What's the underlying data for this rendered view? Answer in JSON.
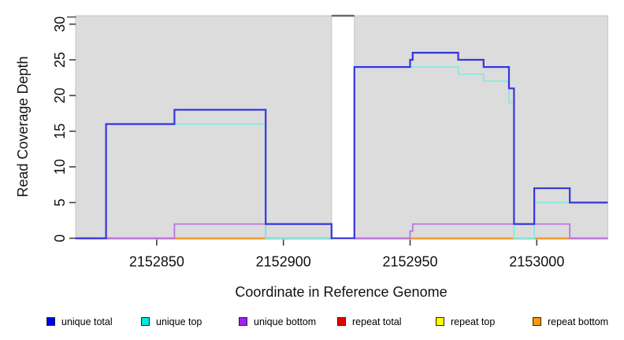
{
  "figure": {
    "background": "#ffffff",
    "panel_background": "#dcdcdc",
    "panel_border": "#c4c4c4",
    "tick_color": "#404040",
    "gap_marker_color": "#6a6a6a",
    "y_axis_gap_tick_color": "#555555"
  },
  "legend": {
    "items": [
      {
        "label": "unique total",
        "color": "#0000ee"
      },
      {
        "label": "unique top",
        "color": "#00e5e5"
      },
      {
        "label": "unique bottom",
        "color": "#a020f0"
      },
      {
        "label": "repeat total",
        "color": "#e60000"
      },
      {
        "label": "repeat top",
        "color": "#ffff00"
      },
      {
        "label": "repeat bottom",
        "color": "#ff9900"
      }
    ]
  },
  "chart_data": {
    "type": "step-line",
    "title": "",
    "xlabel": "Coordinate in Reference Genome",
    "ylabel": "Read Coverage Depth",
    "xlim": [
      2152818,
      2153028
    ],
    "ylim": [
      0,
      31
    ],
    "x_ticks": [
      2152850,
      2152900,
      2152950,
      2153000
    ],
    "y_ticks": [
      0,
      5,
      10,
      15,
      20,
      25,
      30
    ],
    "y_axis_gap_tick": 31,
    "grid": false,
    "legend_position": "bottom",
    "regions": [
      {
        "x0": 2152818,
        "x1": 2152919
      },
      {
        "x0": 2152928,
        "x1": 2153028
      }
    ],
    "gap_markers": [
      {
        "x0": 2152919,
        "x1": 2152928,
        "y": 31
      }
    ],
    "series": [
      {
        "name": "unique total",
        "stroke": "#3535de",
        "points": [
          [
            2152818,
            0
          ],
          [
            2152830,
            0
          ],
          [
            2152830,
            16
          ],
          [
            2152857,
            16
          ],
          [
            2152857,
            18
          ],
          [
            2152893,
            18
          ],
          [
            2152893,
            2
          ],
          [
            2152919,
            2
          ],
          [
            2152919,
            0
          ],
          [
            2152928,
            0
          ],
          [
            2152928,
            24
          ],
          [
            2152950,
            24
          ],
          [
            2152950,
            25
          ],
          [
            2152951,
            25
          ],
          [
            2152951,
            26
          ],
          [
            2152969,
            26
          ],
          [
            2152969,
            25
          ],
          [
            2152979,
            25
          ],
          [
            2152979,
            24
          ],
          [
            2152989,
            24
          ],
          [
            2152989,
            21
          ],
          [
            2152991,
            21
          ],
          [
            2152991,
            2
          ],
          [
            2152999,
            2
          ],
          [
            2152999,
            7
          ],
          [
            2153013,
            7
          ],
          [
            2153013,
            5
          ],
          [
            2153028,
            5
          ]
        ]
      },
      {
        "name": "unique top",
        "stroke": "#86e9e2",
        "points": [
          [
            2152818,
            0
          ],
          [
            2152830,
            0
          ],
          [
            2152830,
            16
          ],
          [
            2152893,
            16
          ],
          [
            2152893,
            0
          ],
          [
            2152928,
            0
          ],
          [
            2152928,
            24
          ],
          [
            2152969,
            24
          ],
          [
            2152969,
            23
          ],
          [
            2152979,
            23
          ],
          [
            2152979,
            22
          ],
          [
            2152989,
            22
          ],
          [
            2152989,
            19
          ],
          [
            2152991,
            19
          ],
          [
            2152991,
            0
          ],
          [
            2152999,
            0
          ],
          [
            2152999,
            5
          ],
          [
            2153028,
            5
          ]
        ]
      },
      {
        "name": "unique bottom",
        "stroke": "#bc74e2",
        "points": [
          [
            2152818,
            0
          ],
          [
            2152857,
            0
          ],
          [
            2152857,
            2
          ],
          [
            2152893,
            2
          ],
          [
            2152893,
            0
          ],
          [
            2152950,
            0
          ],
          [
            2152950,
            1
          ],
          [
            2152951,
            1
          ],
          [
            2152951,
            2
          ],
          [
            2153013,
            2
          ],
          [
            2153013,
            0
          ],
          [
            2153028,
            0
          ]
        ]
      },
      {
        "name": "repeat total",
        "stroke": "#e05060",
        "points": [
          [
            2152818,
            0
          ],
          [
            2153028,
            0
          ]
        ]
      },
      {
        "name": "repeat top",
        "stroke": "#f5e100",
        "points": [
          [
            2152818,
            0
          ],
          [
            2153028,
            0
          ]
        ]
      },
      {
        "name": "repeat bottom",
        "stroke": "#f79420",
        "points": [
          [
            2152818,
            0
          ],
          [
            2153028,
            0
          ]
        ]
      }
    ],
    "baseline_overlay": [
      {
        "x0": 2152818,
        "x1": 2152830,
        "color": "#5a50dd"
      },
      {
        "x0": 2152830,
        "x1": 2152857,
        "color": "#e0608a"
      },
      {
        "x0": 2152857,
        "x1": 2152893,
        "color": "#f79420"
      },
      {
        "x0": 2152893,
        "x1": 2152919,
        "color": "#80ce90"
      },
      {
        "x0": 2152928,
        "x1": 2152950,
        "color": "#e0608a"
      },
      {
        "x0": 2152950,
        "x1": 2152991,
        "color": "#f79420"
      },
      {
        "x0": 2152991,
        "x1": 2152999,
        "color": "#80ce90"
      },
      {
        "x0": 2152999,
        "x1": 2153013,
        "color": "#f79420"
      },
      {
        "x0": 2153013,
        "x1": 2153028,
        "color": "#e0608a"
      }
    ]
  }
}
